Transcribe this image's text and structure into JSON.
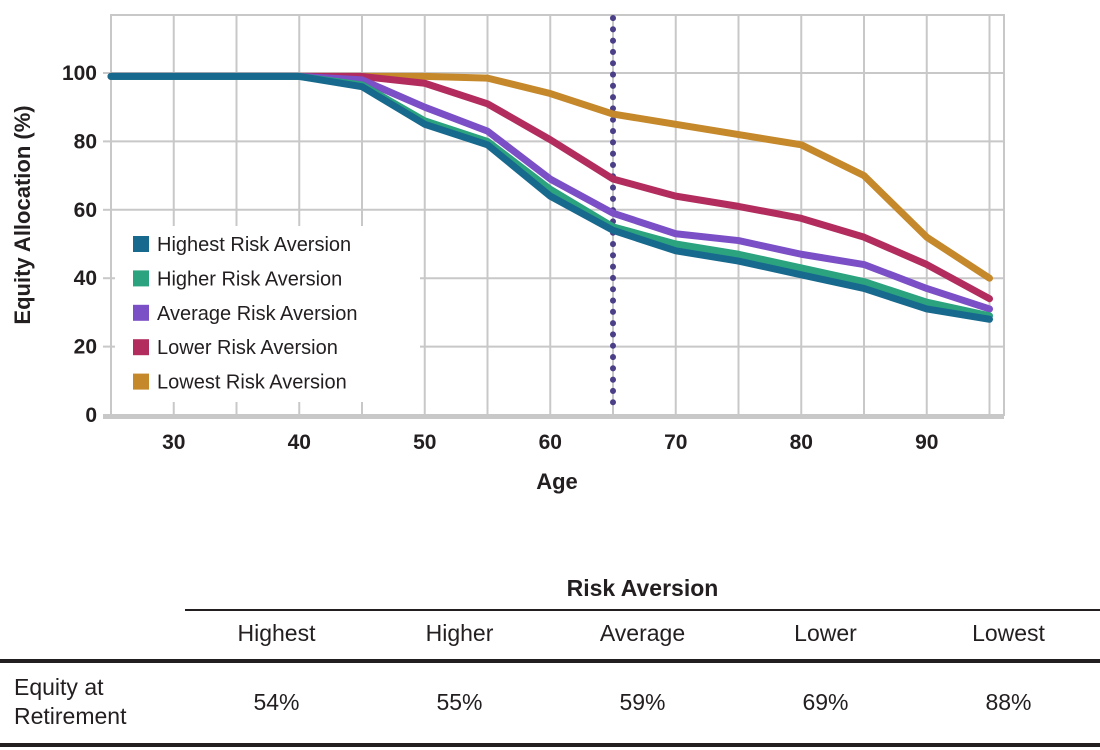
{
  "chart_data": {
    "type": "line",
    "xlabel": "Age",
    "ylabel": "Equity Allocation (%)",
    "x": [
      25,
      30,
      35,
      40,
      45,
      50,
      55,
      60,
      65,
      70,
      75,
      80,
      85,
      90,
      95
    ],
    "xticks": [
      30,
      40,
      50,
      60,
      70,
      80,
      90
    ],
    "yticks": [
      0,
      20,
      40,
      60,
      80,
      100
    ],
    "xlim": [
      25,
      96.5
    ],
    "ylim": [
      0,
      116
    ],
    "grid": true,
    "grid_color": "#C8C8C8",
    "text_color": "#231F20",
    "legend_position": "inside-left",
    "retirement_line": {
      "x": 65,
      "style": "dotted",
      "color": "#4B3F87"
    },
    "series": [
      {
        "name": "Highest Risk Aversion",
        "color": "#17698D",
        "values": [
          99,
          99,
          99,
          99,
          96,
          85,
          79,
          64,
          54,
          48,
          45,
          41,
          37,
          31,
          28
        ]
      },
      {
        "name": "Higher Risk Aversion",
        "color": "#2BA37E",
        "values": [
          99,
          99,
          99,
          99,
          96.5,
          86,
          80,
          66,
          55,
          50,
          47,
          43,
          39,
          33,
          29
        ]
      },
      {
        "name": "Average Risk Aversion",
        "color": "#7B4FC6",
        "values": [
          99,
          99,
          99,
          99,
          98,
          90,
          83,
          69,
          59,
          53,
          51,
          47,
          44,
          37,
          31
        ]
      },
      {
        "name": "Lower Risk Aversion",
        "color": "#B22D5E",
        "values": [
          99,
          99,
          99,
          99,
          99,
          97,
          91,
          80.5,
          69,
          64,
          61,
          57.5,
          52,
          44,
          34
        ]
      },
      {
        "name": "Lowest Risk Aversion",
        "color": "#C5882A",
        "values": [
          99,
          99,
          99,
          99,
          99,
          99,
          98.5,
          94,
          88,
          85,
          82,
          79,
          70,
          52,
          40
        ]
      }
    ]
  },
  "table": {
    "title": "Risk Aversion",
    "columns": [
      "Highest",
      "Higher",
      "Average",
      "Lower",
      "Lowest"
    ],
    "row_label": "Equity at Retirement",
    "values": [
      "54%",
      "55%",
      "59%",
      "69%",
      "88%"
    ]
  }
}
